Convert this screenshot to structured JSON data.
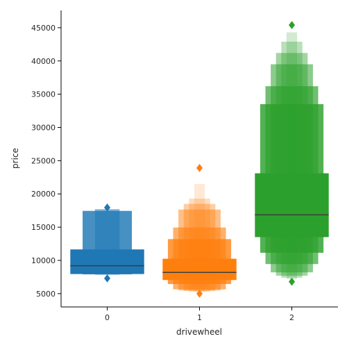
{
  "chart_data": {
    "type": "boxen",
    "title": "",
    "xlabel": "drivewheel",
    "ylabel": "price",
    "categories": [
      "0",
      "1",
      "2"
    ],
    "ylim": [
      3000,
      47600
    ],
    "yticks": [
      5000,
      10000,
      15000,
      20000,
      25000,
      30000,
      35000,
      40000,
      45000
    ],
    "grid": false,
    "colors": [
      "#1f77b4",
      "#ff7f0e",
      "#2ca02c"
    ],
    "median_color": "#3d3d3d",
    "groups": [
      {
        "category": "0",
        "median": 9200,
        "levels": [
          {
            "low": 7950,
            "high": 11650,
            "alpha": 1.0
          },
          {
            "low": 7900,
            "high": 17450,
            "alpha": 0.82
          },
          {
            "low": 7850,
            "high": 17700,
            "alpha": 0.55
          }
        ],
        "outliers": [
          7300,
          17950
        ]
      },
      {
        "category": "1",
        "median": 8200,
        "levels": [
          {
            "low": 7050,
            "high": 10250,
            "alpha": 1.0
          },
          {
            "low": 6450,
            "high": 13200,
            "alpha": 0.78
          },
          {
            "low": 5650,
            "high": 14950,
            "alpha": 0.62
          },
          {
            "low": 5500,
            "high": 17650,
            "alpha": 0.5
          },
          {
            "low": 5400,
            "high": 18500,
            "alpha": 0.38
          },
          {
            "low": 5300,
            "high": 19300,
            "alpha": 0.27
          },
          {
            "low": 5250,
            "high": 21500,
            "alpha": 0.17
          }
        ],
        "outliers": [
          5000,
          23900
        ]
      },
      {
        "category": "2",
        "median": 16850,
        "levels": [
          {
            "low": 13500,
            "high": 23100,
            "alpha": 1.0
          },
          {
            "low": 11150,
            "high": 33500,
            "alpha": 0.82
          },
          {
            "low": 9450,
            "high": 36200,
            "alpha": 0.68
          },
          {
            "low": 8200,
            "high": 39500,
            "alpha": 0.55
          },
          {
            "low": 7700,
            "high": 41200,
            "alpha": 0.44
          },
          {
            "low": 7400,
            "high": 42900,
            "alpha": 0.33
          },
          {
            "low": 7200,
            "high": 44300,
            "alpha": 0.22
          }
        ],
        "outliers": [
          6800,
          45400
        ]
      }
    ]
  }
}
